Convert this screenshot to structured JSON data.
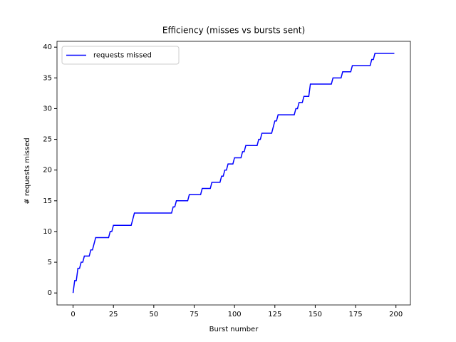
{
  "chart_data": {
    "type": "line",
    "title": "Efficiency (misses vs bursts sent)",
    "x_label": "Burst number",
    "y_label": "# requests missed",
    "x": [
      0,
      1,
      2,
      3,
      4,
      5,
      6,
      7,
      10,
      11,
      12,
      13,
      14,
      22,
      23,
      24,
      25,
      36,
      37,
      38,
      61,
      62,
      63,
      64,
      71,
      72,
      79,
      80,
      85,
      86,
      91,
      92,
      93,
      94,
      95,
      96,
      99,
      100,
      104,
      105,
      106,
      107,
      114,
      115,
      116,
      117,
      123,
      124,
      125,
      126,
      127,
      137,
      138,
      139,
      140,
      142,
      143,
      146,
      147,
      160,
      161,
      166,
      167,
      172,
      173,
      184,
      185,
      186,
      187,
      199
    ],
    "series": [
      {
        "name": "requests missed",
        "color": "#0000ff",
        "values": [
          0,
          2,
          2,
          4,
          4,
          5,
          5,
          6,
          6,
          7,
          7,
          8,
          9,
          9,
          10,
          10,
          11,
          11,
          12,
          13,
          13,
          14,
          14,
          15,
          15,
          16,
          16,
          17,
          17,
          18,
          18,
          19,
          19,
          20,
          20,
          21,
          21,
          22,
          22,
          23,
          23,
          24,
          24,
          25,
          25,
          26,
          26,
          27,
          28,
          28,
          29,
          29,
          30,
          30,
          31,
          31,
          32,
          32,
          34,
          34,
          35,
          35,
          36,
          36,
          37,
          37,
          38,
          38,
          39,
          39
        ]
      }
    ],
    "xlim": [
      -9.95,
      208.95
    ],
    "ylim": [
      -1.95,
      40.95
    ],
    "xticks": [
      0,
      25,
      50,
      75,
      100,
      125,
      150,
      175,
      200
    ],
    "yticks": [
      0,
      5,
      10,
      15,
      20,
      25,
      30,
      35,
      40
    ],
    "legend": "upper left"
  }
}
